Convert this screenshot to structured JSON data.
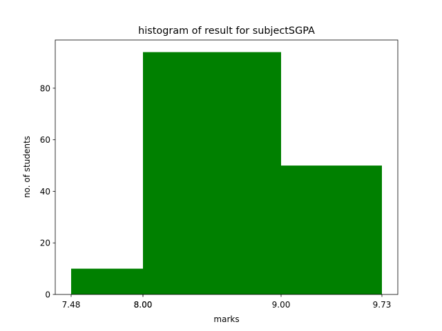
{
  "chart_data": {
    "type": "histogram",
    "title": "histogram of result for subjectSGPA",
    "x_label": "marks",
    "y_label": "no. of students",
    "bins": [
      7.48,
      8.0,
      9.0,
      9.73
    ],
    "values": [
      10,
      94,
      50
    ],
    "color": "#008000",
    "xlim": [
      7.365,
      9.845
    ],
    "xticks": [
      7.48,
      {
        "value": 8,
        "label": "8.00"
      },
      {
        "value": 8,
        "label": "8.00"
      },
      {
        "value": 9,
        "label": "9.00"
      },
      9.73
    ],
    "ylim": [
      0,
      98.7
    ],
    "yticks": [
      0,
      20,
      40,
      60,
      80
    ]
  }
}
